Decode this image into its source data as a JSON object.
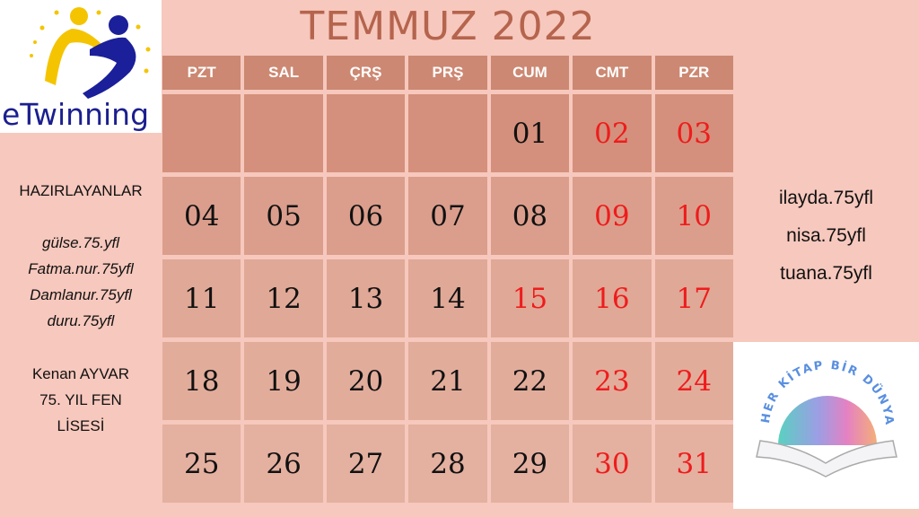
{
  "logo": {
    "text": "eTwinning"
  },
  "title": "TEMMUZ 2022",
  "weekdays": [
    "PZT",
    "SAL",
    "ÇRŞ",
    "PRŞ",
    "CUM",
    "CMT",
    "PZR"
  ],
  "weeks": [
    [
      "",
      "",
      "",
      "",
      "01",
      "02",
      "03"
    ],
    [
      "04",
      "05",
      "06",
      "07",
      "08",
      "09",
      "10"
    ],
    [
      "11",
      "12",
      "13",
      "14",
      "15",
      "16",
      "17"
    ],
    [
      "18",
      "19",
      "20",
      "21",
      "22",
      "23",
      "24"
    ],
    [
      "25",
      "26",
      "27",
      "28",
      "29",
      "30",
      "31"
    ]
  ],
  "red_days": [
    "02",
    "03",
    "09",
    "10",
    "15",
    "16",
    "17",
    "23",
    "24",
    "30",
    "31"
  ],
  "colors": {
    "red": "#ee1c1c",
    "header": "#cc8872",
    "title": "#b5644d",
    "background": "#f7c8bd"
  },
  "left": {
    "heading": "HAZIRLAYANLAR",
    "students": [
      "gülse.75.yfl",
      "Fatma.nur.75yfl",
      "Damlanur.75yfl",
      "duru.75yfl"
    ],
    "teacher": "Kenan AYVAR",
    "school_line1": "75. YIL FEN",
    "school_line2": "LİSESİ"
  },
  "right": {
    "names": [
      "ilayda.75yfl",
      "nisa.75yfl",
      "tuana.75yfl"
    ]
  },
  "book_logo": {
    "text": "HER KİTAP BİR DÜNYA"
  }
}
